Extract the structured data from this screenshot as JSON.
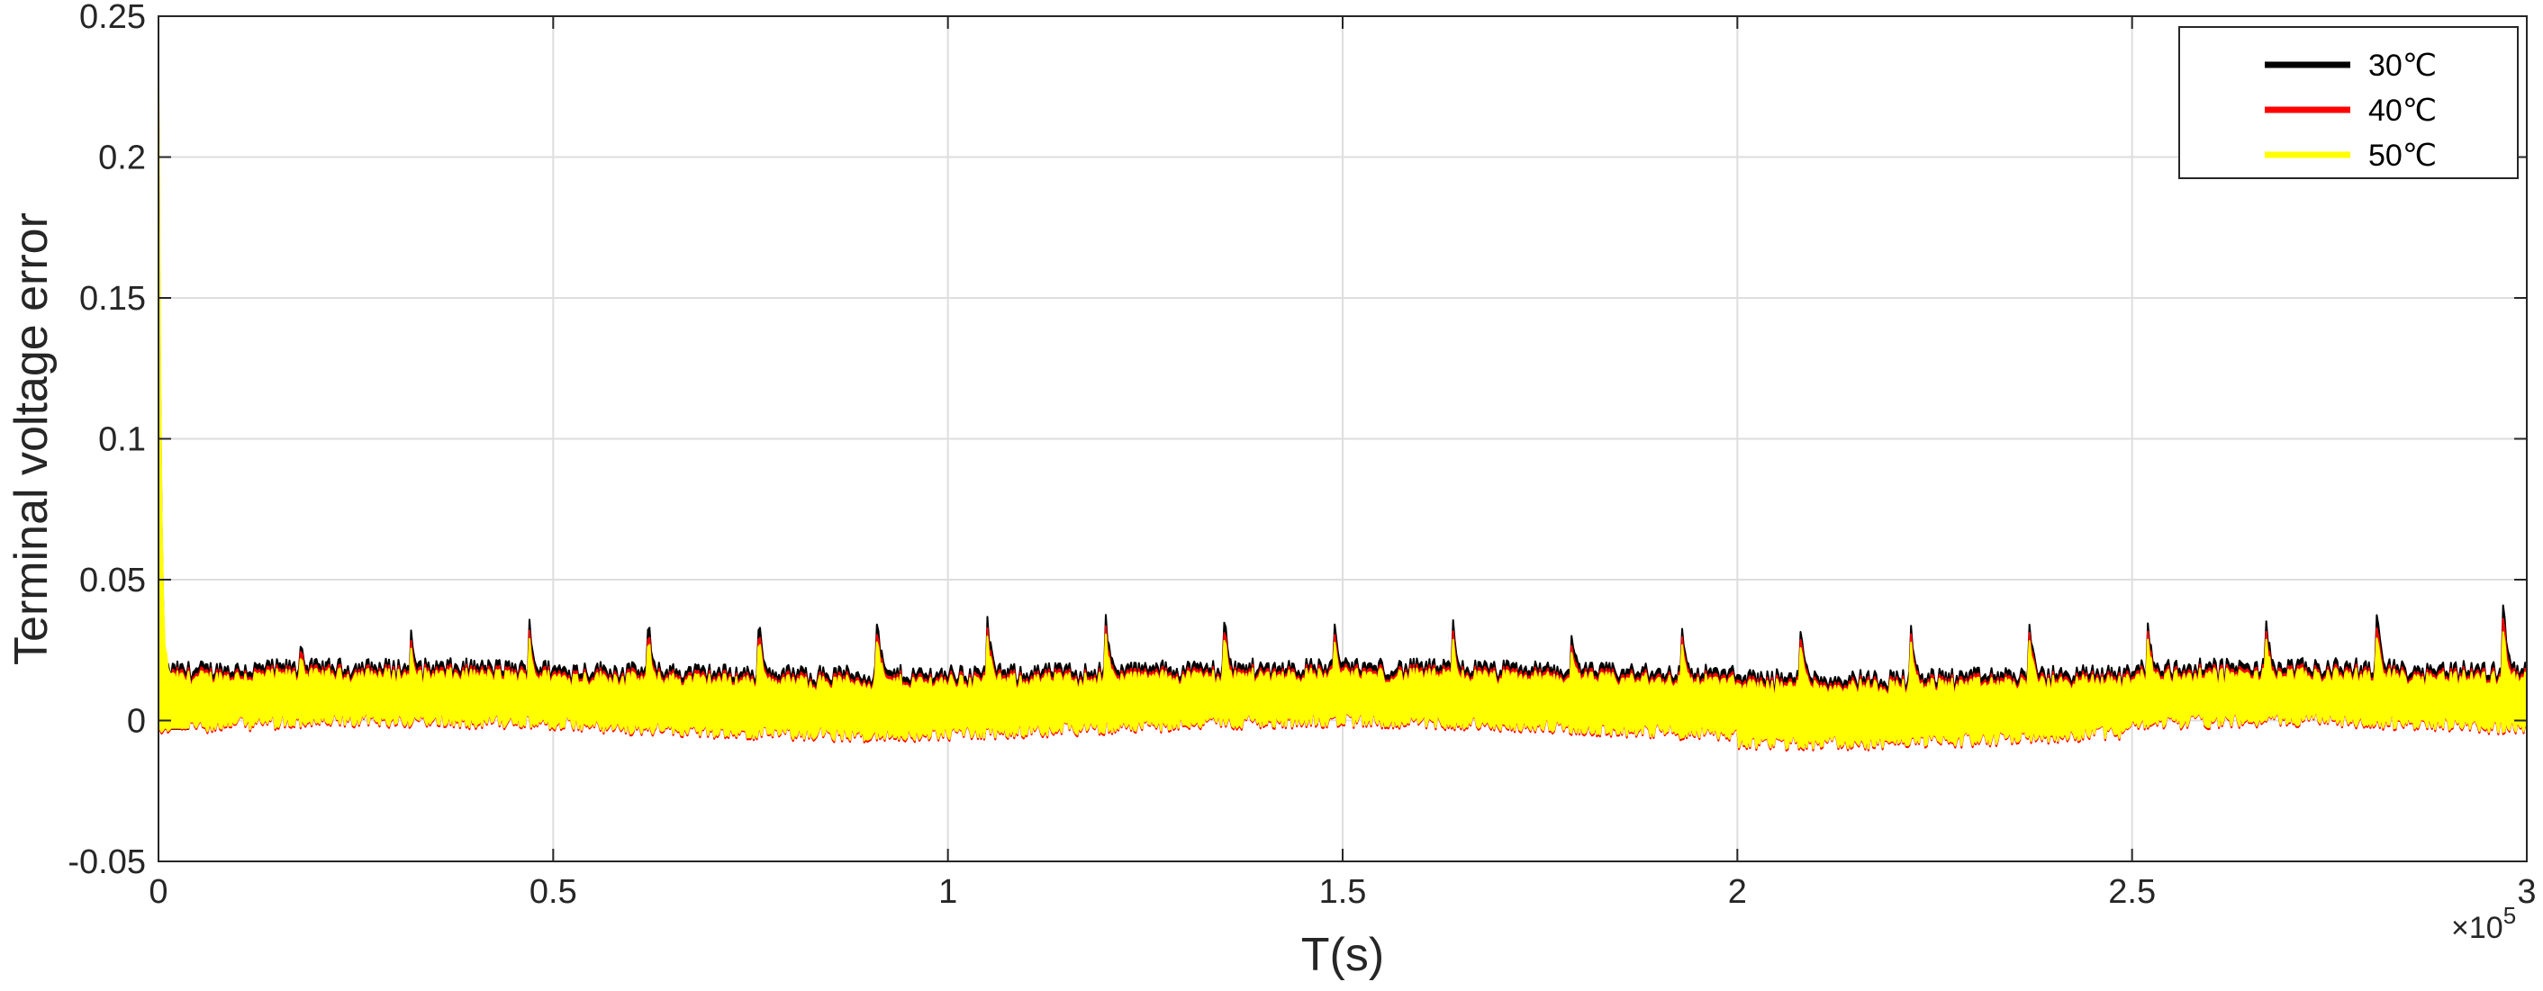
{
  "chart_data": {
    "type": "line",
    "xlabel": "T(s)",
    "ylabel": "Terminal voltage error",
    "x_exponent_label": "×10",
    "x_exponent_power": "5",
    "xlim": [
      0,
      300000
    ],
    "ylim": [
      -0.05,
      0.25
    ],
    "grid": true,
    "legend_placement": "top-right",
    "x_ticks": [
      0,
      0.5,
      1,
      1.5,
      2,
      2.5,
      3
    ],
    "x_tick_labels": [
      "0",
      "0.5",
      "1",
      "1.5",
      "2",
      "2.5",
      "3"
    ],
    "y_ticks": [
      -0.05,
      0,
      0.05,
      0.1,
      0.15,
      0.2,
      0.25
    ],
    "y_tick_labels": [
      "-0.05",
      "0",
      "0.05",
      "0.1",
      "0.15",
      "0.2",
      "0.25"
    ],
    "series": [
      {
        "name": "30℃",
        "color": "#000000",
        "peak": 0.21,
        "offset": 0.004,
        "amp": 1.0,
        "spike_x": [
          800,
          18000,
          32000,
          47000,
          62000,
          76000,
          91000,
          105000,
          120000,
          135000,
          149000,
          164000,
          179000,
          193000,
          208000,
          222000,
          237000,
          252000,
          267000,
          281000,
          297000
        ],
        "spike_y": [
          0.015,
          0.03,
          0.035,
          0.037,
          0.038,
          0.038,
          0.038,
          0.037,
          0.038,
          0.038,
          0.037,
          0.036,
          0.035,
          0.034,
          0.033,
          0.034,
          0.035,
          0.036,
          0.038,
          0.041,
          0.043
        ]
      },
      {
        "name": "40℃",
        "color": "#ff0000",
        "peak": 0.22,
        "offset": 0.003,
        "amp": 0.93,
        "spike_x": [
          800,
          18000,
          32000,
          47000,
          62000,
          76000,
          91000,
          105000,
          120000,
          135000,
          149000,
          164000,
          179000,
          193000,
          208000,
          222000,
          237000,
          252000,
          267000,
          281000,
          297000
        ],
        "spike_y": [
          0.013,
          0.028,
          0.031,
          0.033,
          0.034,
          0.034,
          0.034,
          0.033,
          0.034,
          0.034,
          0.033,
          0.032,
          0.031,
          0.031,
          0.03,
          0.031,
          0.032,
          0.033,
          0.034,
          0.036,
          0.038
        ]
      },
      {
        "name": "50℃",
        "color": "#ffff00",
        "peak": 0.228,
        "offset": 0.003,
        "amp": 0.85,
        "spike_x": [
          800,
          18000,
          32000,
          47000,
          62000,
          76000,
          91000,
          105000,
          120000,
          135000,
          149000,
          164000,
          179000,
          193000,
          208000,
          222000,
          237000,
          252000,
          267000,
          281000,
          297000
        ],
        "spike_y": [
          0.028,
          0.025,
          0.028,
          0.03,
          0.031,
          0.031,
          0.031,
          0.03,
          0.031,
          0.031,
          0.03,
          0.029,
          0.028,
          0.028,
          0.027,
          0.028,
          0.029,
          0.03,
          0.031,
          0.032,
          0.033
        ]
      }
    ]
  }
}
